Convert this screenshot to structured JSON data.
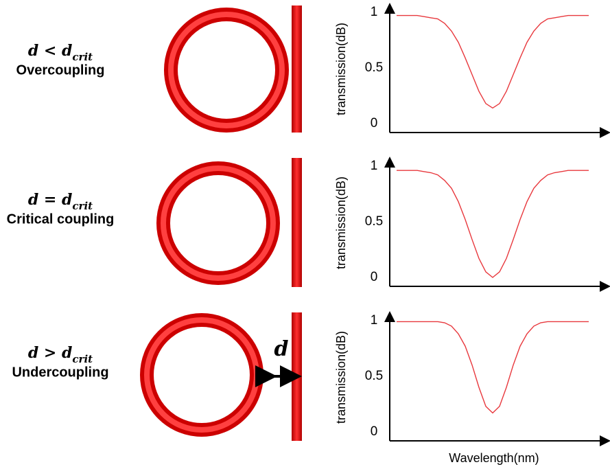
{
  "panels": [
    {
      "condition": "d < d",
      "condition_sub": "crit",
      "label": "Overcoupling"
    },
    {
      "condition": "d = d",
      "condition_sub": "crit",
      "label": "Critical coupling"
    },
    {
      "condition": "d > d",
      "condition_sub": "crit",
      "label": "Undercoupling"
    }
  ],
  "gap_label": "d",
  "chart_data": [
    {
      "type": "line",
      "y_label": "transmission(dB)",
      "x": [
        0,
        1,
        2,
        3,
        4,
        5,
        6,
        7,
        8,
        9,
        10,
        11,
        12,
        13,
        14,
        15,
        16,
        17,
        18,
        19,
        20,
        21,
        22,
        23,
        24,
        25,
        26,
        27,
        28
      ],
      "values": [
        0.97,
        0.97,
        0.97,
        0.97,
        0.96,
        0.95,
        0.94,
        0.9,
        0.83,
        0.73,
        0.59,
        0.44,
        0.29,
        0.18,
        0.14,
        0.18,
        0.29,
        0.44,
        0.59,
        0.73,
        0.83,
        0.9,
        0.94,
        0.95,
        0.96,
        0.97,
        0.97,
        0.97,
        0.97
      ],
      "xlim": [
        -1,
        31
      ],
      "ylim": [
        -0.08,
        1.06
      ],
      "yticks": [
        0,
        0.5,
        1
      ],
      "color": "#e8383d"
    },
    {
      "type": "line",
      "y_label": "transmission(dB)",
      "x": [
        0,
        1,
        2,
        3,
        4,
        5,
        6,
        7,
        8,
        9,
        10,
        11,
        12,
        13,
        14,
        15,
        16,
        17,
        18,
        19,
        20,
        21,
        22,
        23,
        24,
        25,
        26,
        27,
        28
      ],
      "values": [
        0.96,
        0.96,
        0.96,
        0.96,
        0.95,
        0.94,
        0.92,
        0.87,
        0.8,
        0.68,
        0.52,
        0.34,
        0.17,
        0.05,
        0.0,
        0.05,
        0.17,
        0.34,
        0.52,
        0.68,
        0.8,
        0.87,
        0.92,
        0.94,
        0.95,
        0.96,
        0.96,
        0.96,
        0.96
      ],
      "xlim": [
        -1,
        31
      ],
      "ylim": [
        -0.08,
        1.06
      ],
      "yticks": [
        0,
        0.5,
        1
      ],
      "color": "#e8383d"
    },
    {
      "type": "line",
      "y_label": "transmission(dB)",
      "x_label": "Wavelength(nm)",
      "x": [
        0,
        1,
        2,
        3,
        4,
        5,
        6,
        7,
        8,
        9,
        10,
        11,
        12,
        13,
        14,
        15,
        16,
        17,
        18,
        19,
        20,
        21,
        22,
        23,
        24,
        25,
        26,
        27,
        28
      ],
      "values": [
        0.99,
        0.99,
        0.99,
        0.99,
        0.99,
        0.99,
        0.99,
        0.98,
        0.95,
        0.88,
        0.77,
        0.6,
        0.4,
        0.23,
        0.17,
        0.23,
        0.4,
        0.6,
        0.77,
        0.88,
        0.95,
        0.98,
        0.99,
        0.99,
        0.99,
        0.99,
        0.99,
        0.99,
        0.99
      ],
      "xlim": [
        -1,
        31
      ],
      "ylim": [
        -0.08,
        1.06
      ],
      "yticks": [
        0,
        0.5,
        1
      ],
      "color": "#e8383d"
    }
  ]
}
